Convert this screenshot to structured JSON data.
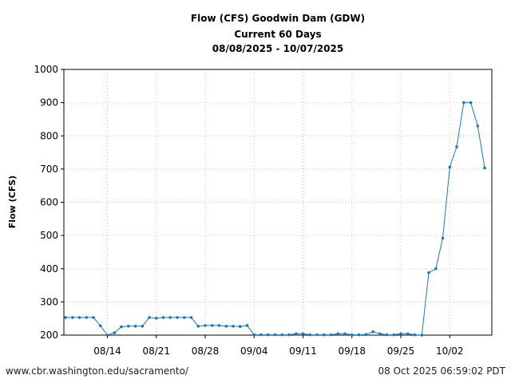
{
  "chart_data": {
    "type": "line",
    "title_lines": [
      "Flow (CFS) Goodwin Dam (GDW)",
      "Current 60 Days",
      "08/08/2025 - 10/07/2025"
    ],
    "ylabel": "Flow (CFS)",
    "xlabel": "",
    "ylim": [
      200,
      1000
    ],
    "yticks": [
      200,
      300,
      400,
      500,
      600,
      700,
      800,
      900,
      1000
    ],
    "xlim": [
      "2025-08-08",
      "2025-10-07"
    ],
    "xticks": [
      {
        "date": "2025-08-14",
        "label": "08/14"
      },
      {
        "date": "2025-08-21",
        "label": "08/21"
      },
      {
        "date": "2025-08-28",
        "label": "08/28"
      },
      {
        "date": "2025-09-04",
        "label": "09/04"
      },
      {
        "date": "2025-09-11",
        "label": "09/11"
      },
      {
        "date": "2025-09-18",
        "label": "09/18"
      },
      {
        "date": "2025-09-25",
        "label": "09/25"
      },
      {
        "date": "2025-10-02",
        "label": "10/02"
      }
    ],
    "grid": true,
    "line_color": "#1f77b4",
    "series": [
      {
        "dates": [
          "2025-08-08",
          "2025-08-09",
          "2025-08-10",
          "2025-08-11",
          "2025-08-12",
          "2025-08-13",
          "2025-08-14",
          "2025-08-15",
          "2025-08-16",
          "2025-08-17",
          "2025-08-18",
          "2025-08-19",
          "2025-08-20",
          "2025-08-21",
          "2025-08-22",
          "2025-08-23",
          "2025-08-24",
          "2025-08-25",
          "2025-08-26",
          "2025-08-27",
          "2025-08-28",
          "2025-08-29",
          "2025-08-30",
          "2025-08-31",
          "2025-09-01",
          "2025-09-02",
          "2025-09-03",
          "2025-09-04",
          "2025-09-05",
          "2025-09-06",
          "2025-09-07",
          "2025-09-08",
          "2025-09-09",
          "2025-09-10",
          "2025-09-11",
          "2025-09-12",
          "2025-09-13",
          "2025-09-14",
          "2025-09-15",
          "2025-09-16",
          "2025-09-17",
          "2025-09-18",
          "2025-09-19",
          "2025-09-20",
          "2025-09-21",
          "2025-09-22",
          "2025-09-23",
          "2025-09-24",
          "2025-09-25",
          "2025-09-26",
          "2025-09-27",
          "2025-09-28",
          "2025-09-29",
          "2025-09-30",
          "2025-10-01",
          "2025-10-02",
          "2025-10-03",
          "2025-10-04",
          "2025-10-05",
          "2025-10-06",
          "2025-10-07"
        ],
        "values": [
          253,
          253,
          253,
          253,
          253,
          228,
          200,
          207,
          225,
          227,
          227,
          227,
          253,
          251,
          253,
          253,
          253,
          253,
          253,
          227,
          229,
          229,
          229,
          227,
          227,
          226,
          229,
          201,
          201,
          201,
          201,
          201,
          201,
          204,
          204,
          201,
          201,
          201,
          201,
          204,
          204,
          201,
          201,
          202,
          210,
          204,
          201,
          201,
          204,
          204,
          201,
          200,
          388,
          400,
          492,
          706,
          767,
          900,
          900,
          830,
          703
        ]
      }
    ]
  },
  "footer": {
    "left": "www.cbr.washington.edu/sacramento/",
    "right": "08 Oct 2025 06:59:02 PDT"
  }
}
